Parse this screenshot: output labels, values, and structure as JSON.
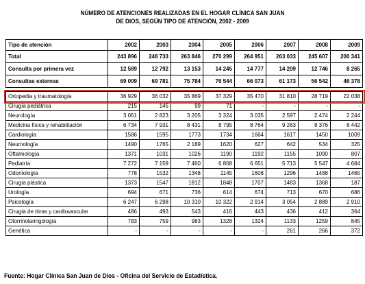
{
  "title_line1": "NÚMERO DE ATENCIONES REALIZADAS EN  EL HOGAR CLÍNICA SAN JUAN",
  "title_line2": "DE DIOS,  SEGÚN TIPO DE ATENCIÓN, 2002 - 2009",
  "highlight_color": "#c0392b",
  "table": {
    "header": [
      "Tipo de atención",
      "2002",
      "2003",
      "2004",
      "2005",
      "2006",
      "2007",
      "2008",
      "2009"
    ],
    "summary_rows": [
      {
        "label": "Total",
        "values": [
          "243 896",
          "248 733",
          "263 846",
          "270 299",
          "264 951",
          "263 033",
          "245 607",
          "200 341"
        ]
      },
      {
        "label": "Consulta por primera vez",
        "values": [
          "12 589",
          "12 792",
          "13 153",
          "14 245",
          "14 777",
          "14 209",
          "12 746",
          "8 265"
        ]
      },
      {
        "label": "Consultas externas",
        "values": [
          "69 009",
          "69 781",
          "75 784",
          "76 544",
          "66 073",
          "61 173",
          "56 542",
          "46 378"
        ]
      }
    ],
    "rows": [
      {
        "label": "Ortopedia y traumatología",
        "values": [
          "36 929",
          "36 032",
          "35 869",
          "37 329",
          "35 470",
          "31 810",
          "28 719",
          "22 038"
        ]
      },
      {
        "label": "Cirugía pediátrica",
        "values": [
          "215",
          "145",
          "99",
          "71",
          "-",
          "-",
          "-",
          "-"
        ]
      },
      {
        "label": "Neurología",
        "values": [
          "3 051",
          "2 823",
          "3 205",
          "3 324",
          "3 035",
          "2 597",
          "2 474",
          "2 244"
        ]
      },
      {
        "label": "Medicina física y rehabilitación",
        "values": [
          "6 734",
          "7 931",
          "8 431",
          "8 795",
          "8 764",
          "9 263",
          "8 376",
          "8 442"
        ]
      },
      {
        "label": "Cardiología",
        "values": [
          "1586",
          "1595",
          "1773",
          "1734",
          "1664",
          "1617",
          "1450",
          "1009"
        ]
      },
      {
        "label": "Neumología",
        "values": [
          "1490",
          "1765",
          "2 189",
          "1620",
          "627",
          "642",
          "534",
          "325"
        ]
      },
      {
        "label": "Oftalmología",
        "values": [
          "1371",
          "1031",
          "1026",
          "1190",
          "1192",
          "1155",
          "1090",
          "807"
        ]
      },
      {
        "label": "Pediatría",
        "values": [
          "7 272",
          "7 159",
          "7 460",
          "6 808",
          "6 651",
          "5 713",
          "5 547",
          "4 684"
        ]
      },
      {
        "label": "Odontología",
        "values": [
          "778",
          "1532",
          "1348",
          "1145",
          "1608",
          "1296",
          "1488",
          "1465"
        ]
      },
      {
        "label": "Cirugía plástica",
        "values": [
          "1373",
          "1547",
          "1812",
          "1848",
          "1707",
          "1483",
          "1368",
          "187"
        ]
      },
      {
        "label": "Urología",
        "values": [
          "694",
          "671",
          "736",
          "614",
          "674",
          "713",
          "670",
          "686"
        ]
      },
      {
        "label": "Psicología",
        "values": [
          "6 247",
          "6 298",
          "10 310",
          "10 322",
          "2 914",
          "3 054",
          "2 889",
          "2 910"
        ]
      },
      {
        "label": "Cirugía de tóras y cardiovascular",
        "values": [
          "486",
          "493",
          "543",
          "416",
          "443",
          "436",
          "412",
          "364"
        ]
      },
      {
        "label": "Otorrinolaringología",
        "values": [
          "783",
          "759",
          "983",
          "1328",
          "1324",
          "1133",
          "1259",
          "845"
        ]
      },
      {
        "label": "Genética",
        "values": [
          "-",
          "-",
          "-",
          "-",
          "-",
          "261",
          "266",
          "372"
        ]
      }
    ]
  },
  "source": "Fuente: Hogar Clínica San Juan de Dios - Oficina del Servicio de Estadística."
}
